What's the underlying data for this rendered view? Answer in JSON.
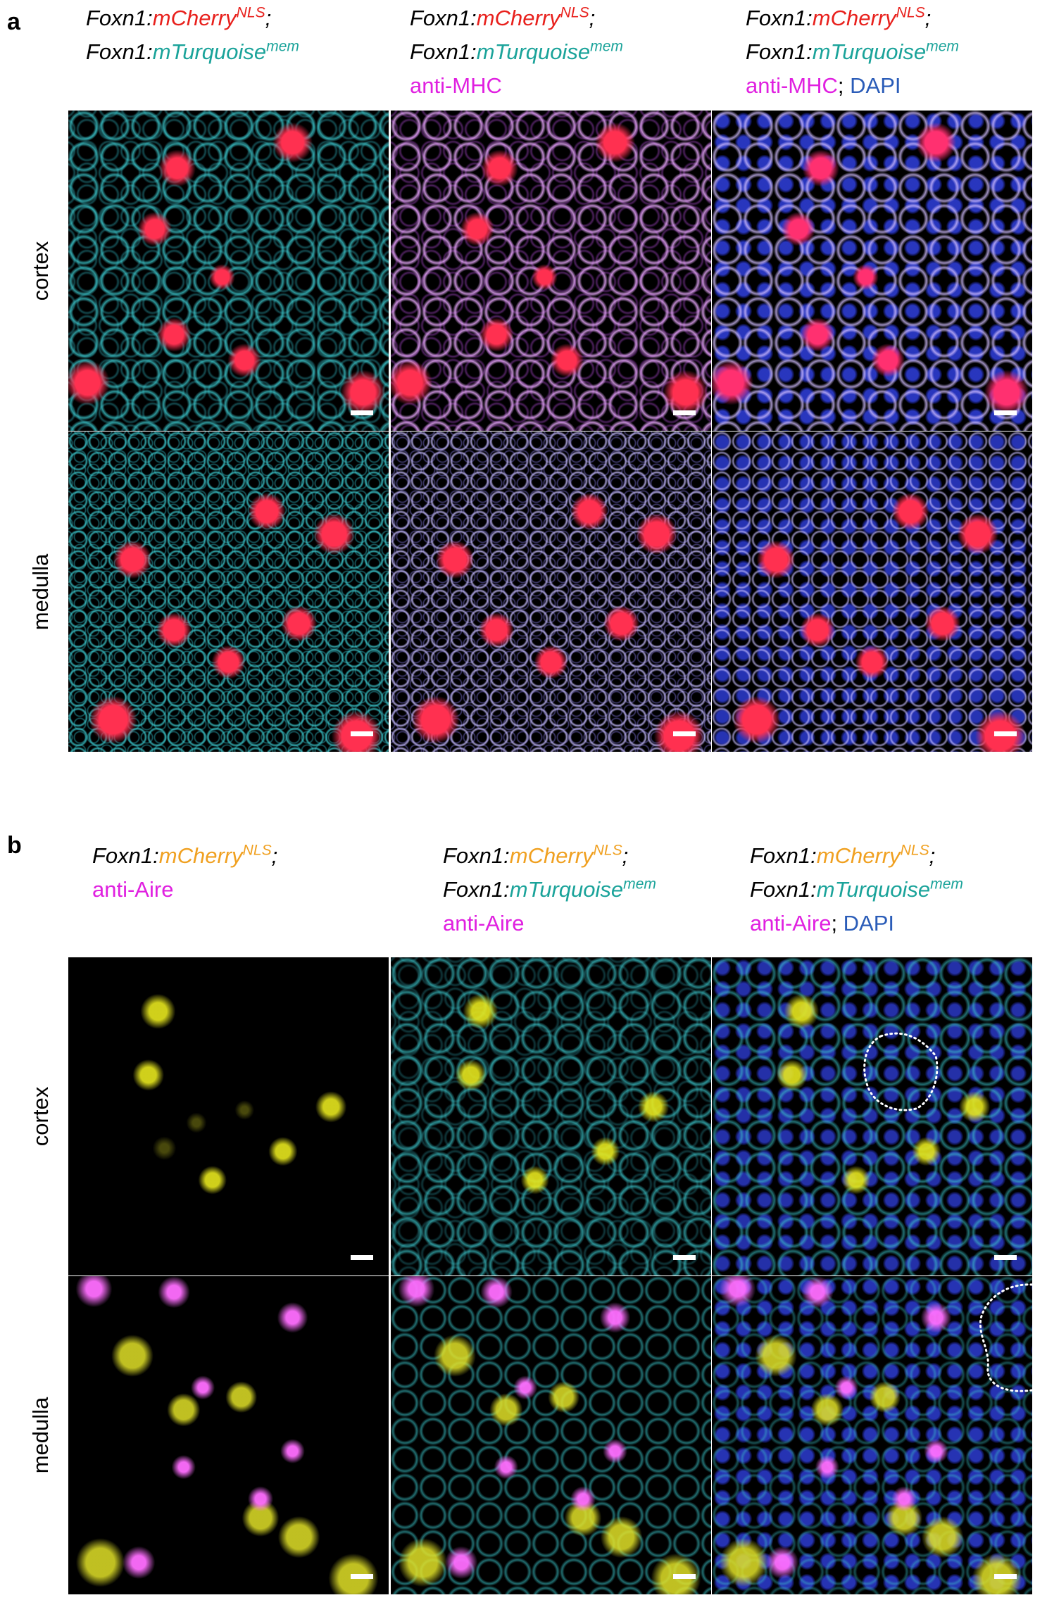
{
  "panels": [
    {
      "label": "a",
      "columns": [
        {
          "lines": [
            [
              {
                "text": "Foxn1:",
                "color": "#000000",
                "italic": true
              },
              {
                "text": "mCherry",
                "color": "#e8201c",
                "italic": true
              },
              {
                "text": "NLS",
                "color": "#e8201c",
                "italic": true,
                "sup": true
              },
              {
                "text": ";",
                "color": "#000000",
                "italic": true
              }
            ],
            [
              {
                "text": "Foxn1:",
                "color": "#000000",
                "italic": true
              },
              {
                "text": "mTurquoise",
                "color": "#1aa39a",
                "italic": true
              },
              {
                "text": "mem",
                "color": "#1aa39a",
                "italic": true,
                "sup": true
              }
            ]
          ]
        },
        {
          "lines": [
            [
              {
                "text": "Foxn1:",
                "color": "#000000",
                "italic": true
              },
              {
                "text": "mCherry",
                "color": "#e8201c",
                "italic": true
              },
              {
                "text": "NLS",
                "color": "#e8201c",
                "italic": true,
                "sup": true
              },
              {
                "text": ";",
                "color": "#000000",
                "italic": true
              }
            ],
            [
              {
                "text": "Foxn1:",
                "color": "#000000",
                "italic": true
              },
              {
                "text": "mTurquoise",
                "color": "#1aa39a",
                "italic": true
              },
              {
                "text": "mem",
                "color": "#1aa39a",
                "italic": true,
                "sup": true
              }
            ],
            [
              {
                "text": "anti-MHC",
                "color": "#e020e0"
              }
            ]
          ]
        },
        {
          "lines": [
            [
              {
                "text": "Foxn1:",
                "color": "#000000",
                "italic": true
              },
              {
                "text": "mCherry",
                "color": "#e8201c",
                "italic": true
              },
              {
                "text": "NLS",
                "color": "#e8201c",
                "italic": true,
                "sup": true
              },
              {
                "text": ";",
                "color": "#000000",
                "italic": true
              }
            ],
            [
              {
                "text": "Foxn1:",
                "color": "#000000",
                "italic": true
              },
              {
                "text": "mTurquoise",
                "color": "#1aa39a",
                "italic": true
              },
              {
                "text": "mem",
                "color": "#1aa39a",
                "italic": true,
                "sup": true
              }
            ],
            [
              {
                "text": "anti-MHC",
                "color": "#e020e0"
              },
              {
                "text": "; ",
                "color": "#000000"
              },
              {
                "text": "DAPI",
                "color": "#2a5cb8"
              }
            ]
          ]
        }
      ],
      "rows": [
        "cortex",
        "medulla"
      ]
    },
    {
      "label": "b",
      "columns": [
        {
          "lines": [
            [
              {
                "text": "Foxn1:",
                "color": "#000000",
                "italic": true
              },
              {
                "text": "mCherry",
                "color": "#f0a020",
                "italic": true
              },
              {
                "text": "NLS",
                "color": "#f0a020",
                "italic": true,
                "sup": true
              },
              {
                "text": ";",
                "color": "#000000",
                "italic": true
              }
            ],
            [
              {
                "text": "anti-Aire",
                "color": "#e020e0"
              }
            ]
          ]
        },
        {
          "lines": [
            [
              {
                "text": "Foxn1:",
                "color": "#000000",
                "italic": true
              },
              {
                "text": "mCherry",
                "color": "#f0a020",
                "italic": true
              },
              {
                "text": "NLS",
                "color": "#f0a020",
                "italic": true,
                "sup": true
              },
              {
                "text": ";",
                "color": "#000000",
                "italic": true
              }
            ],
            [
              {
                "text": "Foxn1:",
                "color": "#000000",
                "italic": true
              },
              {
                "text": "mTurquoise",
                "color": "#1aa39a",
                "italic": true
              },
              {
                "text": "mem",
                "color": "#1aa39a",
                "italic": true,
                "sup": true
              }
            ],
            [
              {
                "text": "anti-Aire",
                "color": "#e020e0"
              }
            ]
          ]
        },
        {
          "lines": [
            [
              {
                "text": "Foxn1:",
                "color": "#000000",
                "italic": true
              },
              {
                "text": "mCherry",
                "color": "#f0a020",
                "italic": true
              },
              {
                "text": "NLS",
                "color": "#f0a020",
                "italic": true,
                "sup": true
              },
              {
                "text": ";",
                "color": "#000000",
                "italic": true
              }
            ],
            [
              {
                "text": "Foxn1:",
                "color": "#000000",
                "italic": true
              },
              {
                "text": "mTurquoise",
                "color": "#1aa39a",
                "italic": true
              },
              {
                "text": "mem",
                "color": "#1aa39a",
                "italic": true,
                "sup": true
              }
            ],
            [
              {
                "text": "anti-Aire",
                "color": "#e020e0"
              },
              {
                "text": "; ",
                "color": "#000000"
              },
              {
                "text": "DAPI",
                "color": "#2a5cb8"
              }
            ]
          ]
        }
      ],
      "rows": [
        "cortex",
        "medulla"
      ]
    }
  ]
}
